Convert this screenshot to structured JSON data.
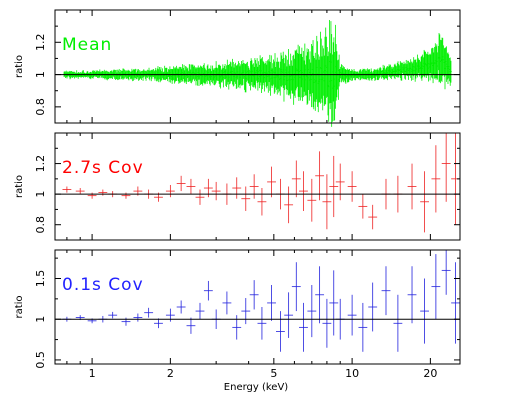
{
  "chart_data": [
    {
      "type": "scatter",
      "panel_label": "Mean",
      "label_color": "#00ee00",
      "color": "#00ee00",
      "ylabel": "ratio",
      "xlabel": "",
      "xscale": "log",
      "xlim": [
        0.72,
        26
      ],
      "ylim": [
        0.7,
        1.4
      ],
      "ytick_values": [
        0.8,
        1,
        1.2
      ],
      "ytick_labels": [
        "0.8",
        "1",
        "1.2"
      ],
      "xtick_values": [
        1,
        2,
        5,
        10,
        20
      ],
      "xtick_labels": [
        "",
        "",
        "",
        "",
        ""
      ],
      "reference_line": 1,
      "series": [
        {
          "x": [
            0.78,
            1.0,
            1.3,
            1.6,
            2.0,
            2.5,
            3.0,
            3.5,
            4.0,
            4.5,
            5.0,
            5.5,
            6.0,
            6.5,
            7.0,
            7.5,
            8.0,
            8.5,
            9.0,
            10.0,
            12.0,
            14.0,
            16.0,
            18.0,
            20.0,
            22.0,
            24.0
          ],
          "y": [
            1.0,
            1.0,
            1.0,
            1.0,
            1.0,
            1.0,
            1.0,
            1.0,
            1.0,
            1.0,
            1.0,
            1.0,
            1.0,
            1.0,
            1.0,
            1.0,
            1.0,
            1.0,
            1.0,
            1.0,
            1.0,
            1.02,
            1.03,
            1.04,
            1.06,
            1.08,
            1.03
          ],
          "yerr": [
            0.02,
            0.02,
            0.03,
            0.03,
            0.04,
            0.05,
            0.06,
            0.07,
            0.08,
            0.09,
            0.1,
            0.12,
            0.13,
            0.15,
            0.17,
            0.2,
            0.25,
            0.3,
            0.05,
            0.03,
            0.03,
            0.04,
            0.05,
            0.06,
            0.08,
            0.14,
            0.08
          ]
        }
      ]
    },
    {
      "type": "scatter",
      "panel_label": "2.7s Cov",
      "label_color": "#ff0000",
      "color": "#ee2222",
      "ylabel": "ratio",
      "xlabel": "",
      "xscale": "log",
      "xlim": [
        0.72,
        26
      ],
      "ylim": [
        0.7,
        1.4
      ],
      "ytick_values": [
        0.8,
        1,
        1.2
      ],
      "ytick_labels": [
        "0.8",
        "1",
        "1.2"
      ],
      "xtick_values": [
        1,
        2,
        5,
        10,
        20
      ],
      "xtick_labels": [
        "",
        "",
        "",
        "",
        ""
      ],
      "reference_line": 1,
      "series": [
        {
          "x": [
            0.8,
            0.9,
            1.0,
            1.1,
            1.2,
            1.35,
            1.5,
            1.65,
            1.8,
            2.0,
            2.2,
            2.4,
            2.6,
            2.8,
            3.0,
            3.3,
            3.6,
            3.9,
            4.2,
            4.5,
            4.9,
            5.3,
            5.7,
            6.1,
            6.5,
            7.0,
            7.5,
            8.0,
            8.5,
            9.0,
            10.0,
            11.0,
            12.0,
            13.5,
            15.0,
            17.0,
            19.0,
            21.0,
            23.0,
            25.0
          ],
          "y": [
            1.03,
            1.02,
            0.99,
            1.01,
            1.0,
            0.99,
            1.02,
            1.0,
            0.98,
            1.02,
            1.07,
            1.05,
            0.98,
            1.04,
            1.02,
            1.0,
            1.04,
            0.97,
            1.05,
            0.95,
            1.08,
            1.0,
            0.93,
            1.1,
            1.02,
            0.96,
            1.12,
            0.95,
            1.05,
            1.08,
            1.05,
            0.92,
            0.85,
            1.0,
            1.0,
            1.05,
            0.95,
            1.1,
            1.2,
            1.1
          ],
          "yerr": [
            0.02,
            0.02,
            0.02,
            0.02,
            0.02,
            0.02,
            0.03,
            0.03,
            0.03,
            0.04,
            0.05,
            0.05,
            0.05,
            0.06,
            0.06,
            0.07,
            0.07,
            0.08,
            0.08,
            0.09,
            0.1,
            0.1,
            0.12,
            0.12,
            0.13,
            0.14,
            0.16,
            0.18,
            0.2,
            0.12,
            0.1,
            0.08,
            0.08,
            0.1,
            0.12,
            0.15,
            0.2,
            0.22,
            0.25,
            0.3
          ]
        }
      ]
    },
    {
      "type": "scatter",
      "panel_label": "0.1s Cov",
      "label_color": "#2222ff",
      "color": "#2222dd",
      "ylabel": "ratio",
      "xlabel": "Energy (keV)",
      "xscale": "log",
      "xlim": [
        0.72,
        26
      ],
      "ylim": [
        0.45,
        1.85
      ],
      "ytick_values": [
        0.5,
        1,
        1.5
      ],
      "ytick_labels": [
        "0.5",
        "1",
        "1.5"
      ],
      "xtick_values": [
        1,
        2,
        5,
        10,
        20
      ],
      "xtick_labels": [
        "1",
        "2",
        "5",
        "10",
        "20"
      ],
      "reference_line": 1,
      "series": [
        {
          "x": [
            0.8,
            0.9,
            1.0,
            1.1,
            1.2,
            1.35,
            1.5,
            1.65,
            1.8,
            2.0,
            2.2,
            2.4,
            2.6,
            2.8,
            3.0,
            3.3,
            3.6,
            3.9,
            4.2,
            4.5,
            4.9,
            5.3,
            5.7,
            6.1,
            6.5,
            7.0,
            7.5,
            8.0,
            8.5,
            9.0,
            10.0,
            11.0,
            12.0,
            13.5,
            15.0,
            17.0,
            19.0,
            21.0,
            23.0,
            25.0
          ],
          "y": [
            1.0,
            1.02,
            0.98,
            1.0,
            1.05,
            0.97,
            1.02,
            1.08,
            0.95,
            1.05,
            1.15,
            0.92,
            1.1,
            1.35,
            1.0,
            1.2,
            0.9,
            1.1,
            1.3,
            0.95,
            1.2,
            0.85,
            1.05,
            1.4,
            0.9,
            1.1,
            1.3,
            0.95,
            1.2,
            1.0,
            1.05,
            0.9,
            1.15,
            1.35,
            0.95,
            1.3,
            1.1,
            1.4,
            1.6,
            1.2
          ],
          "yerr": [
            0.03,
            0.03,
            0.03,
            0.04,
            0.04,
            0.05,
            0.05,
            0.06,
            0.06,
            0.08,
            0.08,
            0.1,
            0.1,
            0.12,
            0.12,
            0.14,
            0.15,
            0.16,
            0.18,
            0.2,
            0.22,
            0.25,
            0.28,
            0.3,
            0.3,
            0.32,
            0.35,
            0.3,
            0.4,
            0.25,
            0.25,
            0.3,
            0.3,
            0.3,
            0.35,
            0.35,
            0.4,
            0.4,
            0.3,
            0.5
          ]
        }
      ]
    }
  ]
}
